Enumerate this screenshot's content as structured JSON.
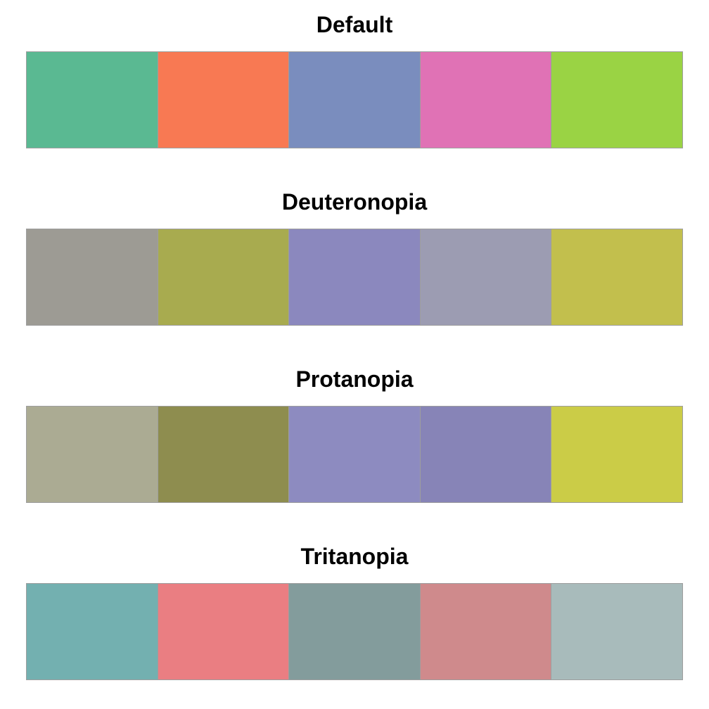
{
  "palettes": [
    {
      "title": "Default",
      "colors": [
        "#5AB992",
        "#F87953",
        "#7A8DBE",
        "#E072B5",
        "#9AD344"
      ]
    },
    {
      "title": "Deuteronopia",
      "colors": [
        "#9D9B94",
        "#A8AB4F",
        "#8B88BE",
        "#9C9CB2",
        "#C2BF4D"
      ]
    },
    {
      "title": "Protanopia",
      "colors": [
        "#ABAB93",
        "#8E8D4F",
        "#8D8BC0",
        "#8784B7",
        "#CBCC47"
      ]
    },
    {
      "title": "Tritanopia",
      "colors": [
        "#73B0B0",
        "#EA7E82",
        "#839C9C",
        "#CF8A8C",
        "#A8BBBB"
      ]
    }
  ]
}
